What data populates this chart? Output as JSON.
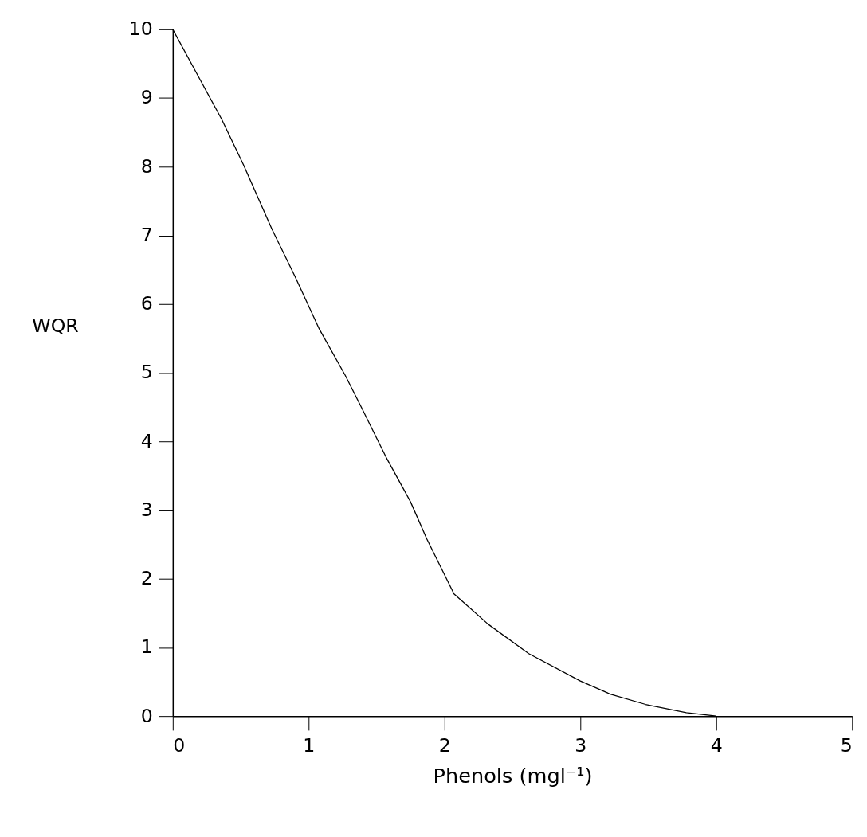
{
  "chart_data": {
    "type": "line",
    "xlabel": "Phenols (mgl⁻¹)",
    "ylabel": "WQR",
    "x": [
      0,
      0.36,
      0.52,
      0.73,
      0.9,
      1.08,
      1.27,
      1.39,
      1.57,
      1.75,
      1.87,
      2.07,
      2.32,
      2.62,
      3.0,
      3.22,
      3.48,
      3.78,
      4
    ],
    "series": [
      {
        "color": "#000000",
        "values": [
          10,
          8.69,
          8.03,
          7.09,
          6.4,
          5.63,
          4.96,
          4.49,
          3.77,
          3.12,
          2.58,
          1.78,
          1.34,
          0.91,
          0.51,
          0.32,
          0.17,
          0.05,
          0
        ]
      }
    ],
    "xlim": [
      0,
      5
    ],
    "xticks": [
      0,
      1,
      2,
      3,
      4,
      5
    ],
    "ylim": [
      0,
      10
    ],
    "yticks": [
      0,
      1,
      2,
      3,
      4,
      5,
      6,
      7,
      8,
      9,
      10
    ],
    "grid": false,
    "marker": "none",
    "line_style": "solid"
  }
}
